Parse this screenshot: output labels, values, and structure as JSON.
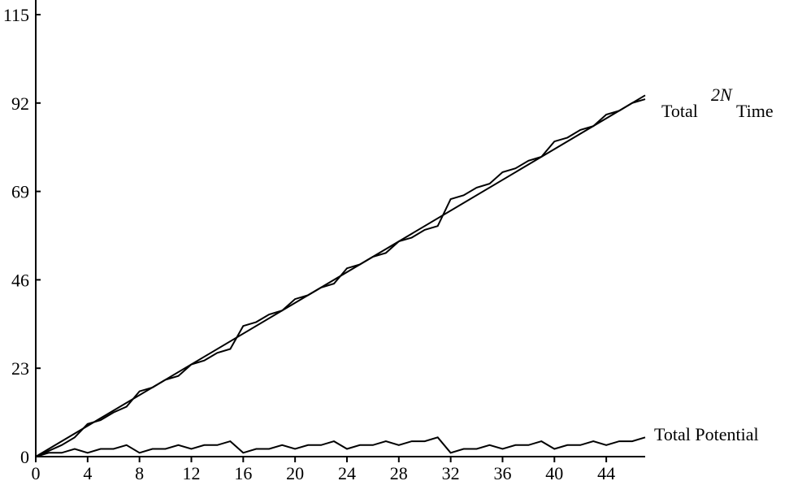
{
  "chart_data": {
    "type": "line",
    "title": "",
    "xlabel": "",
    "ylabel": "",
    "xlim": [
      0,
      47
    ],
    "ylim": [
      0,
      115
    ],
    "xticks": [
      0,
      4,
      8,
      12,
      16,
      20,
      24,
      28,
      32,
      36,
      40,
      44
    ],
    "yticks": [
      0,
      23,
      46,
      69,
      92,
      115
    ],
    "grid": false,
    "series": [
      {
        "label_parts": [
          "Total",
          "2N",
          "Time"
        ],
        "x": [
          0,
          47
        ],
        "y": [
          0,
          94
        ]
      },
      {
        "x": [
          0,
          1,
          2,
          3,
          4,
          5,
          6,
          7,
          8,
          9,
          10,
          11,
          12,
          13,
          14,
          15,
          16,
          17,
          18,
          19,
          20,
          21,
          22,
          23,
          24,
          25,
          26,
          27,
          28,
          29,
          30,
          31,
          32,
          33,
          34,
          35,
          36,
          37,
          38,
          39,
          40,
          41,
          42,
          43,
          44,
          45,
          46,
          47
        ],
        "y": [
          0,
          1.5,
          3,
          5,
          8.5,
          9.5,
          11.5,
          13,
          17,
          18,
          20,
          21,
          24,
          25,
          27,
          28,
          34,
          35,
          37,
          38,
          41,
          42,
          44,
          45,
          49,
          50,
          52,
          53,
          56,
          57,
          59,
          60,
          67,
          68,
          70,
          71,
          74,
          75,
          77,
          78,
          82,
          83,
          85,
          86,
          89,
          90,
          92,
          93
        ]
      },
      {
        "name": "Total Potential",
        "x": [
          0,
          1,
          2,
          3,
          4,
          5,
          6,
          7,
          8,
          9,
          10,
          11,
          12,
          13,
          14,
          15,
          16,
          17,
          18,
          19,
          20,
          21,
          22,
          23,
          24,
          25,
          26,
          27,
          28,
          29,
          30,
          31,
          32,
          33,
          34,
          35,
          36,
          37,
          38,
          39,
          40,
          41,
          42,
          43,
          44,
          45,
          46,
          47
        ],
        "y": [
          0,
          1,
          1,
          2,
          1,
          2,
          2,
          3,
          1,
          2,
          2,
          3,
          2,
          3,
          3,
          4,
          1,
          2,
          2,
          3,
          2,
          3,
          3,
          4,
          2,
          3,
          3,
          4,
          3,
          4,
          4,
          5,
          1,
          2,
          2,
          3,
          2,
          3,
          3,
          4,
          2,
          3,
          3,
          4,
          3,
          4,
          4,
          5
        ]
      }
    ]
  }
}
